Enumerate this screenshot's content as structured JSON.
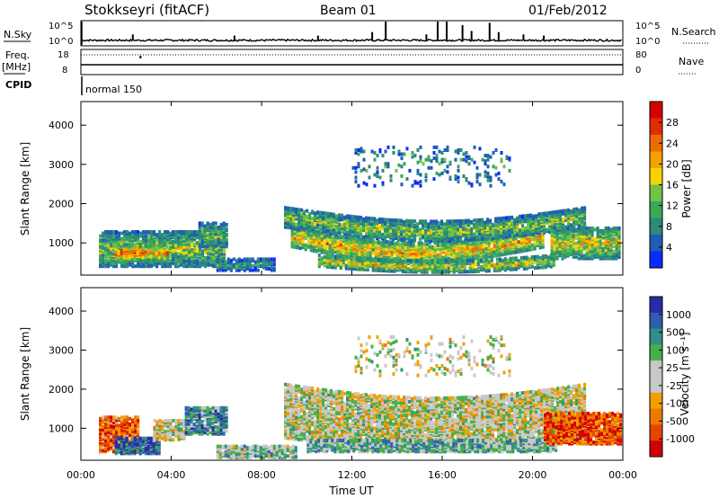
{
  "header": {
    "station": "Stokkseyri (fitACF)",
    "beam": "Beam 01",
    "date": "01/Feb/2012"
  },
  "labels": {
    "nsky": "N.Sky",
    "nsearch": "N.Search",
    "freq": "Freq.",
    "mhz": "[MHz]",
    "nave": "Nave",
    "cpid": "CPID",
    "cpid_value": "normal 150"
  },
  "colors": {
    "power": [
      "#0a2aff",
      "#1e5fb4",
      "#2d8a78",
      "#3aa85a",
      "#6fc24a",
      "#f7d400",
      "#f5a300",
      "#ef6a00",
      "#e32b00",
      "#d40000"
    ],
    "velocity": [
      "#2a2aa8",
      "#2d5fb0",
      "#2f8f86",
      "#46b048",
      "#c8c8c8",
      "#c8c8c8",
      "#f2a000",
      "#ec7a00",
      "#e54400",
      "#d40000"
    ],
    "ground_scatter": "#bfbfbf"
  },
  "chart_data": [
    {
      "type": "line",
      "title": "N.Sky / N.Search",
      "x_range": [
        "00:00",
        "24:00"
      ],
      "left_ticks": [
        "10^5",
        "10^0"
      ],
      "right_ticks": [
        "10^5",
        "10^0"
      ],
      "series": [
        {
          "name": "N.Sky",
          "style": "solid"
        },
        {
          "name": "N.Search",
          "style": "dotted"
        }
      ],
      "baseline_level": 0.2,
      "spikes": [
        {
          "t": 2.3,
          "v": 0.45
        },
        {
          "t": 6.8,
          "v": 0.4
        },
        {
          "t": 10.5,
          "v": 0.4
        },
        {
          "t": 12.9,
          "v": 0.55
        },
        {
          "t": 13.5,
          "v": 1.0
        },
        {
          "t": 15.3,
          "v": 0.45
        },
        {
          "t": 15.8,
          "v": 1.0
        },
        {
          "t": 16.2,
          "v": 1.0
        },
        {
          "t": 16.9,
          "v": 0.85
        },
        {
          "t": 17.3,
          "v": 0.6
        },
        {
          "t": 18.1,
          "v": 0.95
        },
        {
          "t": 18.5,
          "v": 0.55
        },
        {
          "t": 19.6,
          "v": 0.45
        },
        {
          "t": 20.5,
          "v": 0.4
        }
      ]
    },
    {
      "type": "line",
      "title": "Freq. [MHz] / Nave",
      "left_ticks": [
        "18",
        "8"
      ],
      "right_ticks": [
        "80",
        "0"
      ],
      "series": [
        {
          "name": "Freq.",
          "style": "solid",
          "value": 9.5
        },
        {
          "name": "Nave",
          "style": "dotted",
          "value": 80
        }
      ]
    },
    {
      "type": "heatmap",
      "title": "Power",
      "ylabel": "Slant Range [km]",
      "yticks": [
        1000,
        2000,
        3000,
        4000
      ],
      "ylim": [
        180,
        4600
      ],
      "xlim": [
        0,
        24
      ],
      "xticks": [
        "00:00",
        "04:00",
        "08:00",
        "12:00",
        "16:00",
        "20:00",
        "00:00"
      ],
      "colorbar": {
        "label": "Power [dB]",
        "ticks": [
          "4",
          "8",
          "12",
          "16",
          "20",
          "24",
          "28"
        ]
      },
      "scatter_bands": [
        {
          "t0": 0.8,
          "t1": 6.4,
          "center": 900,
          "width": 450,
          "level": 0.45
        },
        {
          "t0": 1.5,
          "t1": 3.8,
          "center": 800,
          "width": 200,
          "level": 0.75
        },
        {
          "t0": 5.2,
          "t1": 6.4,
          "center": 1250,
          "width": 300,
          "level": 0.4
        },
        {
          "t0": 6.0,
          "t1": 8.6,
          "center": 500,
          "width": 150,
          "level": 0.3
        },
        {
          "t0": 9.3,
          "t1": 20.5,
          "center": 1200,
          "width": 250,
          "level": 0.65,
          "curve": 400
        },
        {
          "t0": 9.0,
          "t1": 22.3,
          "center": 1700,
          "width": 250,
          "level": 0.45,
          "curve": 350
        },
        {
          "t0": 10.5,
          "t1": 21.0,
          "center": 600,
          "width": 150,
          "level": 0.55,
          "curve": 150
        },
        {
          "t0": 20.8,
          "t1": 23.9,
          "center": 1050,
          "width": 400,
          "level": 0.55
        },
        {
          "t0": 12.0,
          "t1": 19.0,
          "center": 3000,
          "width": 500,
          "level": 0.3,
          "sparse": true
        }
      ]
    },
    {
      "type": "heatmap",
      "title": "Velocity",
      "ylabel": "Slant Range [km]",
      "yticks": [
        1000,
        2000,
        3000,
        4000
      ],
      "ylim": [
        180,
        4600
      ],
      "xlim": [
        0,
        24
      ],
      "xticks": [
        "00:00",
        "04:00",
        "08:00",
        "12:00",
        "16:00",
        "20:00",
        "00:00"
      ],
      "xlabel": "Time UT",
      "colorbar": {
        "label": "Velocity [m s⁻¹]",
        "ticks": [
          "1000",
          "500",
          "100",
          "25",
          "-25",
          "-100",
          "-500",
          "-1000"
        ]
      },
      "scatter_bands": [
        {
          "t0": 0.8,
          "t1": 2.5,
          "center": 900,
          "width": 450,
          "level": 0.8
        },
        {
          "t0": 1.5,
          "t1": 3.5,
          "center": 600,
          "width": 200,
          "level": 0.15
        },
        {
          "t0": 3.2,
          "t1": 4.6,
          "center": 1000,
          "width": 250,
          "level": 0.5
        },
        {
          "t0": 4.6,
          "t1": 6.4,
          "center": 1250,
          "width": 350,
          "level": 0.25
        },
        {
          "t0": 9.0,
          "t1": 22.3,
          "center": 1500,
          "width": 700,
          "level": 0.5,
          "curve": 350
        },
        {
          "t0": 10.0,
          "t1": 21.0,
          "center": 600,
          "width": 150,
          "level": 0.35
        },
        {
          "t0": 6.0,
          "t1": 9.5,
          "center": 450,
          "width": 150,
          "level": 0.4
        },
        {
          "t0": 20.5,
          "t1": 23.9,
          "center": 1050,
          "width": 400,
          "level": 0.85
        },
        {
          "t0": 12.0,
          "t1": 19.0,
          "center": 2900,
          "width": 500,
          "level": 0.5,
          "sparse": true
        }
      ]
    }
  ]
}
